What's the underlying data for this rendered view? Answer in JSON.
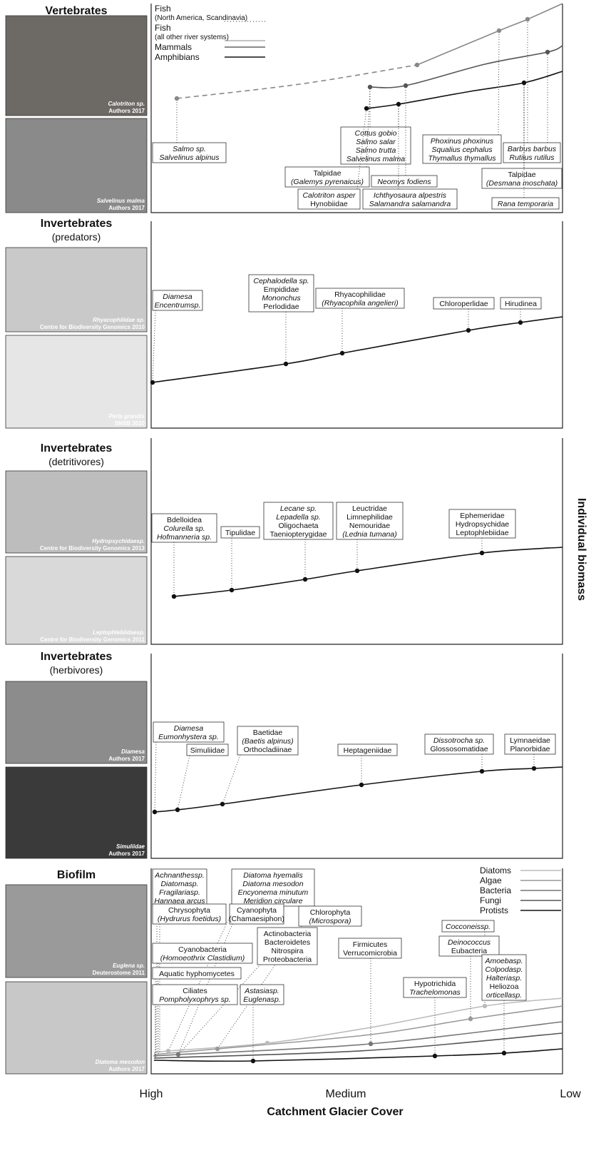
{
  "axis": {
    "x_label": "Catchment Glacier Cover",
    "x_ticks": [
      "High",
      "Medium",
      "Low"
    ],
    "y_label": "Individual biomass"
  },
  "panels": [
    {
      "title": "Vertebrates",
      "photos": [
        [
          "Calotriton sp.",
          "Authors 2017"
        ],
        [
          "Salvelinus malma",
          "Authors 2017"
        ]
      ],
      "legend": [
        [
          "Fish",
          "(North America, Scandinavia)"
        ],
        [
          "Fish",
          "(all other river systems)"
        ],
        [
          "Mammals"
        ],
        [
          "Amphibians"
        ]
      ],
      "labels": [
        [
          "Salmo sp.",
          "Salvelinus alpinus"
        ],
        [
          "Cottus gobio",
          "Salmo salar",
          "Salmo trutta",
          "Salvelinus malma"
        ],
        [
          "Talpidae",
          "(Galemys pyrenaicus)"
        ],
        [
          "Neomys fodiens"
        ],
        [
          "Calotriton asper",
          "Hynobiidae"
        ],
        [
          "Ichthyosaura alpestris",
          "Salamandra salamandra"
        ],
        [
          "Phoxinus phoxinus",
          "Squalius cephalus",
          "Thymallus thymallus"
        ],
        [
          "Barbus barbus",
          "Rutilus rutilus"
        ],
        [
          "Talpidae",
          "(Desmana moschata)"
        ],
        [
          "Rana temporaria"
        ]
      ]
    },
    {
      "title": "Invertebrates",
      "subtitle": "(predators)",
      "photos": [
        [
          "Rhyacophilidae sp.",
          "Centre for Biodiversity Genomics 2010"
        ],
        [
          "Perla grandis",
          "SNSB 2010"
        ]
      ],
      "labels": [
        [
          "Diamesa",
          "Encentrumsp."
        ],
        [
          "Cephalodella sp.",
          "Empididae",
          "Mononchus",
          "Perlodidae"
        ],
        [
          "Rhyacophilidae",
          "(Rhyacophila angelieri)"
        ],
        [
          "Chloroperlidae"
        ],
        [
          "Hirudinea"
        ]
      ]
    },
    {
      "title": "Invertebrates",
      "subtitle": "(detritivores)",
      "photos": [
        [
          "Hydropsychidaesp.",
          "Centre for Biodiversity Genomics 2013"
        ],
        [
          "Leptophlebiidaesp.",
          "Centre for Biodiversity Genomics 2011"
        ]
      ],
      "labels": [
        [
          "Bdelloidea",
          "Colurella sp.",
          "Hofmanneria sp."
        ],
        [
          "Tipulidae"
        ],
        [
          "Lecane sp.",
          "Lepadella sp.",
          "Oligochaeta",
          "Taeniopterygidae"
        ],
        [
          "Leuctridae",
          "Limnephilidae",
          "Nemouridae",
          "(Lednia tumana)"
        ],
        [
          "Ephemeridae",
          "Hydropsychidae",
          "Leptophlebiidae"
        ]
      ]
    },
    {
      "title": "Invertebrates",
      "subtitle": "(herbivores)",
      "photos": [
        [
          "Diamesa",
          "Authors 2017"
        ],
        [
          "Simuliidae",
          "Authors 2017"
        ]
      ],
      "labels": [
        [
          "Diamesa",
          "Eumonhystera sp."
        ],
        [
          "Simuliidae"
        ],
        [
          "Baetidae",
          "(Baetis alpinus)",
          "Orthocladiinae"
        ],
        [
          "Heptageniidae"
        ],
        [
          "Dissotrocha sp.",
          "Glossosomatidae"
        ],
        [
          "Lymnaeidae",
          "Planorbidae"
        ]
      ]
    },
    {
      "title": "Biofilm",
      "photos": [
        [
          "Euglena sp.",
          "Deuterostome 2011"
        ],
        [
          "Diatoma mesodon",
          "Authors 2017"
        ]
      ],
      "legend": [
        [
          "Diatoms"
        ],
        [
          "Algae"
        ],
        [
          "Bacteria"
        ],
        [
          "Fungi"
        ],
        [
          "Protists"
        ]
      ],
      "labels": [
        [
          "Achnanthessp.",
          "Diatomasp.",
          "Fragilariasp.",
          "Hannaea arcus"
        ],
        [
          "Diatoma hyemalis",
          "Diatoma mesodon",
          "Encyonema minutum",
          "Meridion circulare"
        ],
        [
          "Chrysophyta",
          "(Hydrurus foetidus)"
        ],
        [
          "Cyanophyta",
          "(Chamaesiphon)"
        ],
        [
          "Chlorophyta",
          "(Microspora)"
        ],
        [
          "Actinobacteria",
          "Bacteroidetes",
          "Nitrospira",
          "Proteobacteria"
        ],
        [
          "Cyanobacteria",
          "(Homoeothrix Clastidium)"
        ],
        [
          "Aquatic hyphomycetes"
        ],
        [
          "Ciliates",
          "Pompholyxophrys sp."
        ],
        [
          "Astasiasp.",
          "Euglenasp."
        ],
        [
          "Firmicutes",
          "Verrucomicrobia"
        ],
        [
          "Cocconeissp."
        ],
        [
          "Deinococcus",
          "Eubacteria"
        ],
        [
          "Hypotrichida",
          "Trachelomonas"
        ],
        [
          "Amoebasp.",
          "Colpodasp.",
          "Halteriasp.",
          "Heliozoa",
          "orticellasp."
        ]
      ]
    }
  ]
}
